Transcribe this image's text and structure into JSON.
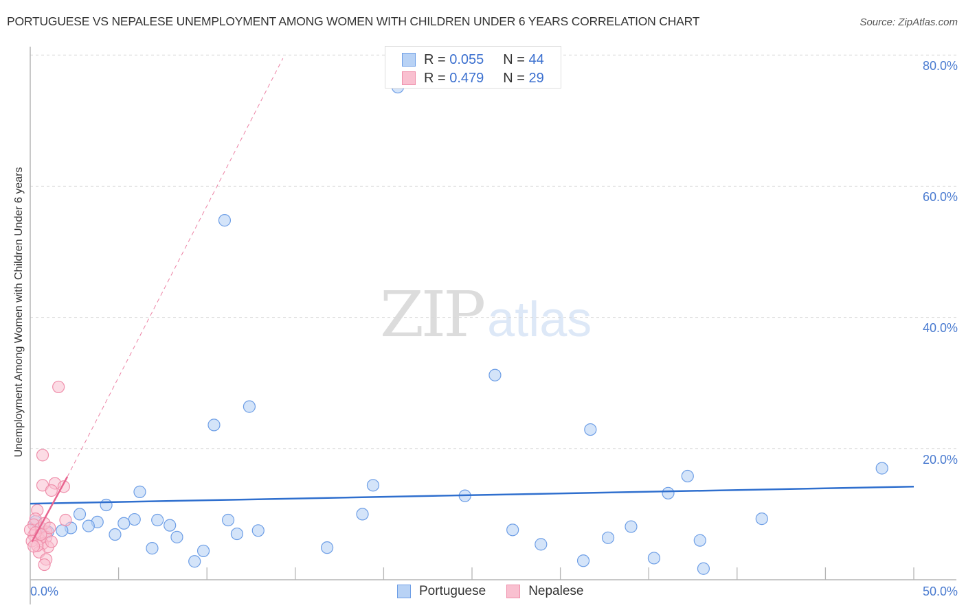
{
  "header": {
    "title": "PORTUGUESE VS NEPALESE UNEMPLOYMENT AMONG WOMEN WITH CHILDREN UNDER 6 YEARS CORRELATION CHART",
    "source": "Source: ZipAtlas.com"
  },
  "axes": {
    "ylabel": "Unemployment Among Women with Children Under 6 years",
    "y_ticks": [
      "80.0%",
      "60.0%",
      "40.0%",
      "20.0%"
    ],
    "x_min_label": "0.0%",
    "x_max_label": "50.0%"
  },
  "legend_box": {
    "rows": [
      {
        "r_label": "R =",
        "r_value": "0.055",
        "n_label": "N =",
        "n_value": "44"
      },
      {
        "r_label": "R =",
        "r_value": "0.479",
        "n_label": "N =",
        "n_value": "29"
      }
    ]
  },
  "bottom_legend": {
    "items": [
      {
        "label": "Portuguese"
      },
      {
        "label": "Nepalese"
      }
    ]
  },
  "watermark": {
    "zip": "ZIP",
    "atlas": "atlas"
  },
  "colors": {
    "portuguese_fill": "#b8d2f5",
    "portuguese_stroke": "#6d9ee6",
    "portuguese_line": "#2f6fce",
    "nepalese_fill": "#f9c0d0",
    "nepalese_stroke": "#ef8fab",
    "nepalese_line": "#e8648f",
    "tick_text": "#4a7bd0",
    "grid": "#d8d8d8"
  },
  "chart_data": {
    "type": "scatter",
    "title": "PORTUGUESE VS NEPALESE UNEMPLOYMENT AMONG WOMEN WITH CHILDREN UNDER 6 YEARS CORRELATION CHART",
    "xlabel": "",
    "ylabel": "Unemployment Among Women with Children Under 6 years",
    "xlim": [
      0,
      50
    ],
    "ylim": [
      0,
      82
    ],
    "x_ticks": [
      "0.0%",
      "50.0%"
    ],
    "y_ticks": [
      20,
      40,
      60,
      80
    ],
    "grid": {
      "horizontal": true,
      "style": "dashed"
    },
    "legend_position": "bottom-center",
    "series": [
      {
        "name": "Portuguese",
        "R": 0.055,
        "N": 44,
        "trend": {
          "x": [
            0,
            50
          ],
          "y": [
            11.6,
            14.2
          ]
        },
        "points": [
          [
            20.8,
            75.1
          ],
          [
            11.0,
            54.8
          ],
          [
            26.3,
            31.2
          ],
          [
            12.4,
            26.4
          ],
          [
            10.4,
            23.6
          ],
          [
            31.7,
            22.9
          ],
          [
            48.2,
            17.0
          ],
          [
            37.2,
            15.8
          ],
          [
            19.4,
            14.4
          ],
          [
            6.2,
            13.4
          ],
          [
            36.1,
            13.2
          ],
          [
            24.6,
            12.8
          ],
          [
            4.3,
            11.4
          ],
          [
            2.8,
            10.0
          ],
          [
            18.8,
            10.0
          ],
          [
            41.4,
            9.3
          ],
          [
            5.9,
            9.2
          ],
          [
            3.8,
            8.8
          ],
          [
            7.2,
            9.1
          ],
          [
            11.2,
            9.1
          ],
          [
            5.3,
            8.6
          ],
          [
            3.3,
            8.2
          ],
          [
            7.9,
            8.3
          ],
          [
            34.0,
            8.1
          ],
          [
            2.3,
            7.9
          ],
          [
            27.3,
            7.6
          ],
          [
            12.9,
            7.5
          ],
          [
            1.8,
            7.5
          ],
          [
            11.7,
            7.0
          ],
          [
            4.8,
            6.9
          ],
          [
            8.3,
            6.5
          ],
          [
            32.7,
            6.4
          ],
          [
            37.9,
            6.0
          ],
          [
            28.9,
            5.4
          ],
          [
            6.9,
            4.8
          ],
          [
            16.8,
            4.9
          ],
          [
            9.8,
            4.4
          ],
          [
            35.3,
            3.3
          ],
          [
            9.3,
            2.8
          ],
          [
            31.3,
            2.9
          ],
          [
            38.1,
            1.7
          ],
          [
            0.6,
            7.9
          ],
          [
            0.3,
            8.9
          ],
          [
            1.0,
            7.3
          ]
        ]
      },
      {
        "name": "Nepalese",
        "R": 0.479,
        "N": 29,
        "trend": {
          "x": [
            0.1,
            2.1
          ],
          "y": [
            5.8,
            15.7
          ],
          "dashed_extension_to": [
            14.3,
            79.5
          ]
        },
        "points": [
          [
            1.6,
            29.4
          ],
          [
            0.7,
            19.0
          ],
          [
            0.7,
            14.4
          ],
          [
            1.4,
            14.7
          ],
          [
            1.2,
            13.6
          ],
          [
            1.9,
            14.2
          ],
          [
            0.4,
            10.6
          ],
          [
            2.0,
            9.1
          ],
          [
            0.3,
            9.3
          ],
          [
            0.2,
            8.4
          ],
          [
            0.6,
            7.9
          ],
          [
            0.9,
            7.3
          ],
          [
            0.2,
            6.8
          ],
          [
            0.5,
            6.2
          ],
          [
            0.9,
            6.5
          ],
          [
            0.7,
            5.5
          ],
          [
            1.0,
            5.0
          ],
          [
            0.5,
            4.2
          ],
          [
            0.9,
            3.1
          ],
          [
            0.8,
            2.3
          ],
          [
            0.0,
            7.6
          ],
          [
            0.3,
            7.2
          ],
          [
            0.1,
            5.9
          ],
          [
            1.2,
            5.8
          ],
          [
            0.4,
            5.2
          ],
          [
            0.8,
            8.6
          ],
          [
            1.1,
            7.9
          ],
          [
            0.2,
            5.1
          ],
          [
            0.6,
            6.9
          ]
        ]
      }
    ]
  }
}
